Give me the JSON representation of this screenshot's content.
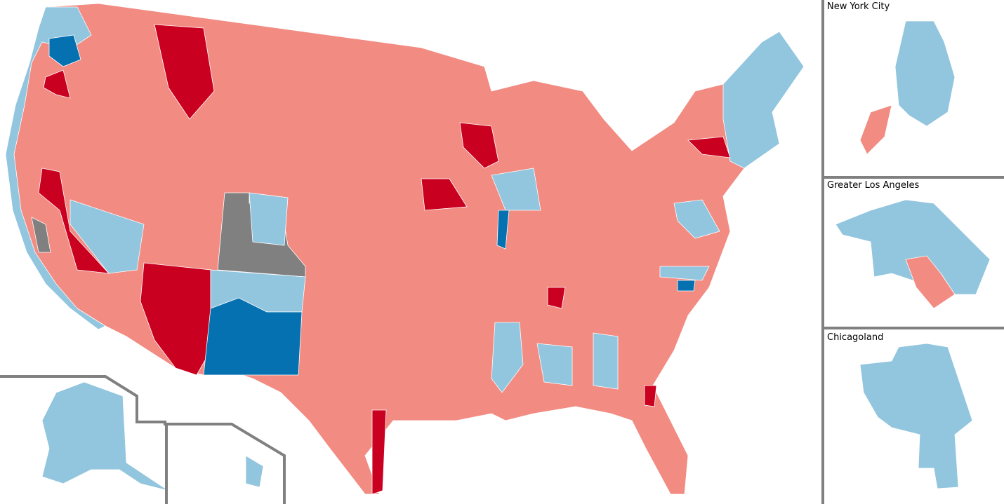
{
  "insets": [
    {
      "title": "New York City"
    },
    {
      "title": "Greater Los Angeles"
    },
    {
      "title": "Chicagoland"
    }
  ]
}
